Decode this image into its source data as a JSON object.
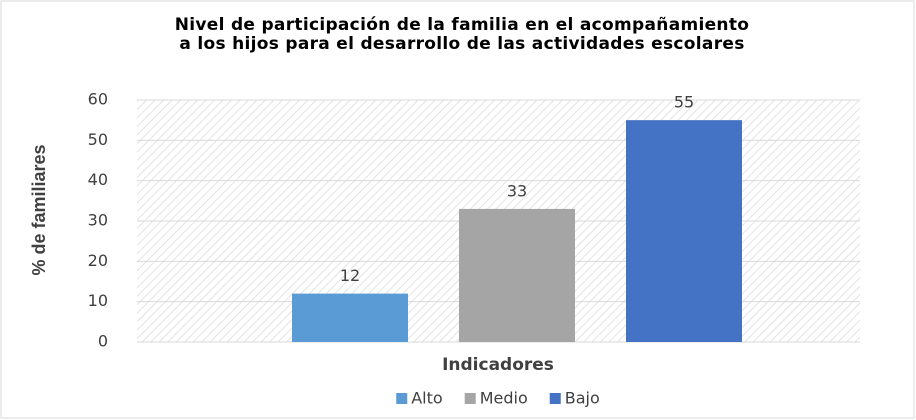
{
  "chart_data": {
    "type": "bar",
    "title": "Nivel de participación de la familia en el acompañamiento a los hijos para el desarrollo de las actividades escolares",
    "x_label": "Indicadores",
    "y_label": "% de familiares",
    "series": [
      {
        "name": "Alto",
        "color": "#5b9bd5",
        "values": [
          12
        ]
      },
      {
        "name": "Medio",
        "color": "#a5a5a5",
        "values": [
          33
        ]
      },
      {
        "name": "Bajo",
        "color": "#4472c4",
        "values": [
          55
        ]
      }
    ],
    "ylim": [
      0,
      60
    ],
    "yticks": [
      0,
      10,
      20,
      30,
      40,
      50,
      60
    ],
    "grid": true,
    "legend": "bottom"
  }
}
